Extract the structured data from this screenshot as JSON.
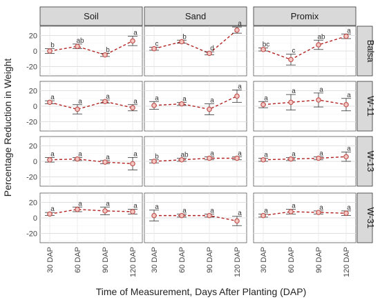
{
  "chart_data": {
    "type": "scatter",
    "subtype": "facet-grid-line-with-error-bars",
    "ylabel": "Percentage Reduction in Weight",
    "xlabel": "Time of Measurement, Days After Planting (DAP)",
    "columns": [
      "Soil",
      "Sand",
      "Promix"
    ],
    "rows": [
      "Balsa",
      "W-11",
      "W-13",
      "W-31"
    ],
    "categories": [
      "30 DAP",
      "60 DAP",
      "90 DAP",
      "120 DAP"
    ],
    "ylim": [
      -32,
      32
    ],
    "yticks": [
      "-20",
      "0",
      "20"
    ],
    "grid": true,
    "marker_color": "#c0504d",
    "line_color": "#b22222",
    "panels": [
      {
        "row": "Balsa",
        "column": "Soil",
        "values": [
          0,
          6,
          -5,
          13
        ],
        "err": [
          3,
          3,
          2,
          6
        ],
        "letters": [
          "b",
          "ab",
          "b",
          "a"
        ]
      },
      {
        "row": "Balsa",
        "column": "Sand",
        "values": [
          3,
          12,
          -3,
          27
        ],
        "err": [
          2,
          2,
          2,
          4
        ],
        "letters": [
          "c",
          "b",
          "d",
          "a"
        ]
      },
      {
        "row": "Balsa",
        "column": "Promix",
        "values": [
          2,
          -11,
          8,
          19
        ],
        "err": [
          2,
          7,
          6,
          3
        ],
        "letters": [
          "bc",
          "c",
          "ab",
          "a"
        ]
      },
      {
        "row": "W-11",
        "column": "Soil",
        "values": [
          5,
          -4,
          6,
          -2
        ],
        "err": [
          2,
          6,
          2,
          4
        ],
        "letters": [
          "a",
          "a",
          "a",
          "a"
        ]
      },
      {
        "row": "W-11",
        "column": "Sand",
        "values": [
          1,
          3,
          -4,
          13
        ],
        "err": [
          5,
          2,
          7,
          8
        ],
        "letters": [
          "a",
          "a",
          "a",
          "a"
        ]
      },
      {
        "row": "W-11",
        "column": "Promix",
        "values": [
          2,
          5,
          8,
          2
        ],
        "err": [
          4,
          10,
          9,
          8
        ],
        "letters": [
          "a",
          "a",
          "a",
          "a"
        ]
      },
      {
        "row": "W-13",
        "column": "Soil",
        "values": [
          2,
          3,
          -1,
          -3
        ],
        "err": [
          3,
          2,
          2,
          8
        ],
        "letters": [
          "a",
          "a",
          "a",
          "a"
        ]
      },
      {
        "row": "W-13",
        "column": "Sand",
        "values": [
          0,
          2,
          4,
          4
        ],
        "err": [
          2,
          2,
          2,
          2
        ],
        "letters": [
          "b",
          "ab",
          "a",
          "a"
        ]
      },
      {
        "row": "W-13",
        "column": "Promix",
        "values": [
          2,
          3,
          4,
          6
        ],
        "err": [
          2,
          2,
          2,
          6
        ],
        "letters": [
          "a",
          "a",
          "a",
          "a"
        ]
      },
      {
        "row": "W-31",
        "column": "Soil",
        "values": [
          5,
          11,
          9,
          8
        ],
        "err": [
          2,
          3,
          5,
          3
        ],
        "letters": [
          "a",
          "a",
          "a",
          "a"
        ]
      },
      {
        "row": "W-31",
        "column": "Sand",
        "values": [
          3,
          3,
          3,
          -4
        ],
        "err": [
          7,
          2,
          2,
          6
        ],
        "letters": [
          "a",
          "a",
          "a",
          "a"
        ]
      },
      {
        "row": "W-31",
        "column": "Promix",
        "values": [
          3,
          8,
          7,
          6
        ],
        "err": [
          2,
          3,
          2,
          3
        ],
        "letters": [
          "a",
          "a",
          "a",
          "a"
        ]
      }
    ]
  }
}
